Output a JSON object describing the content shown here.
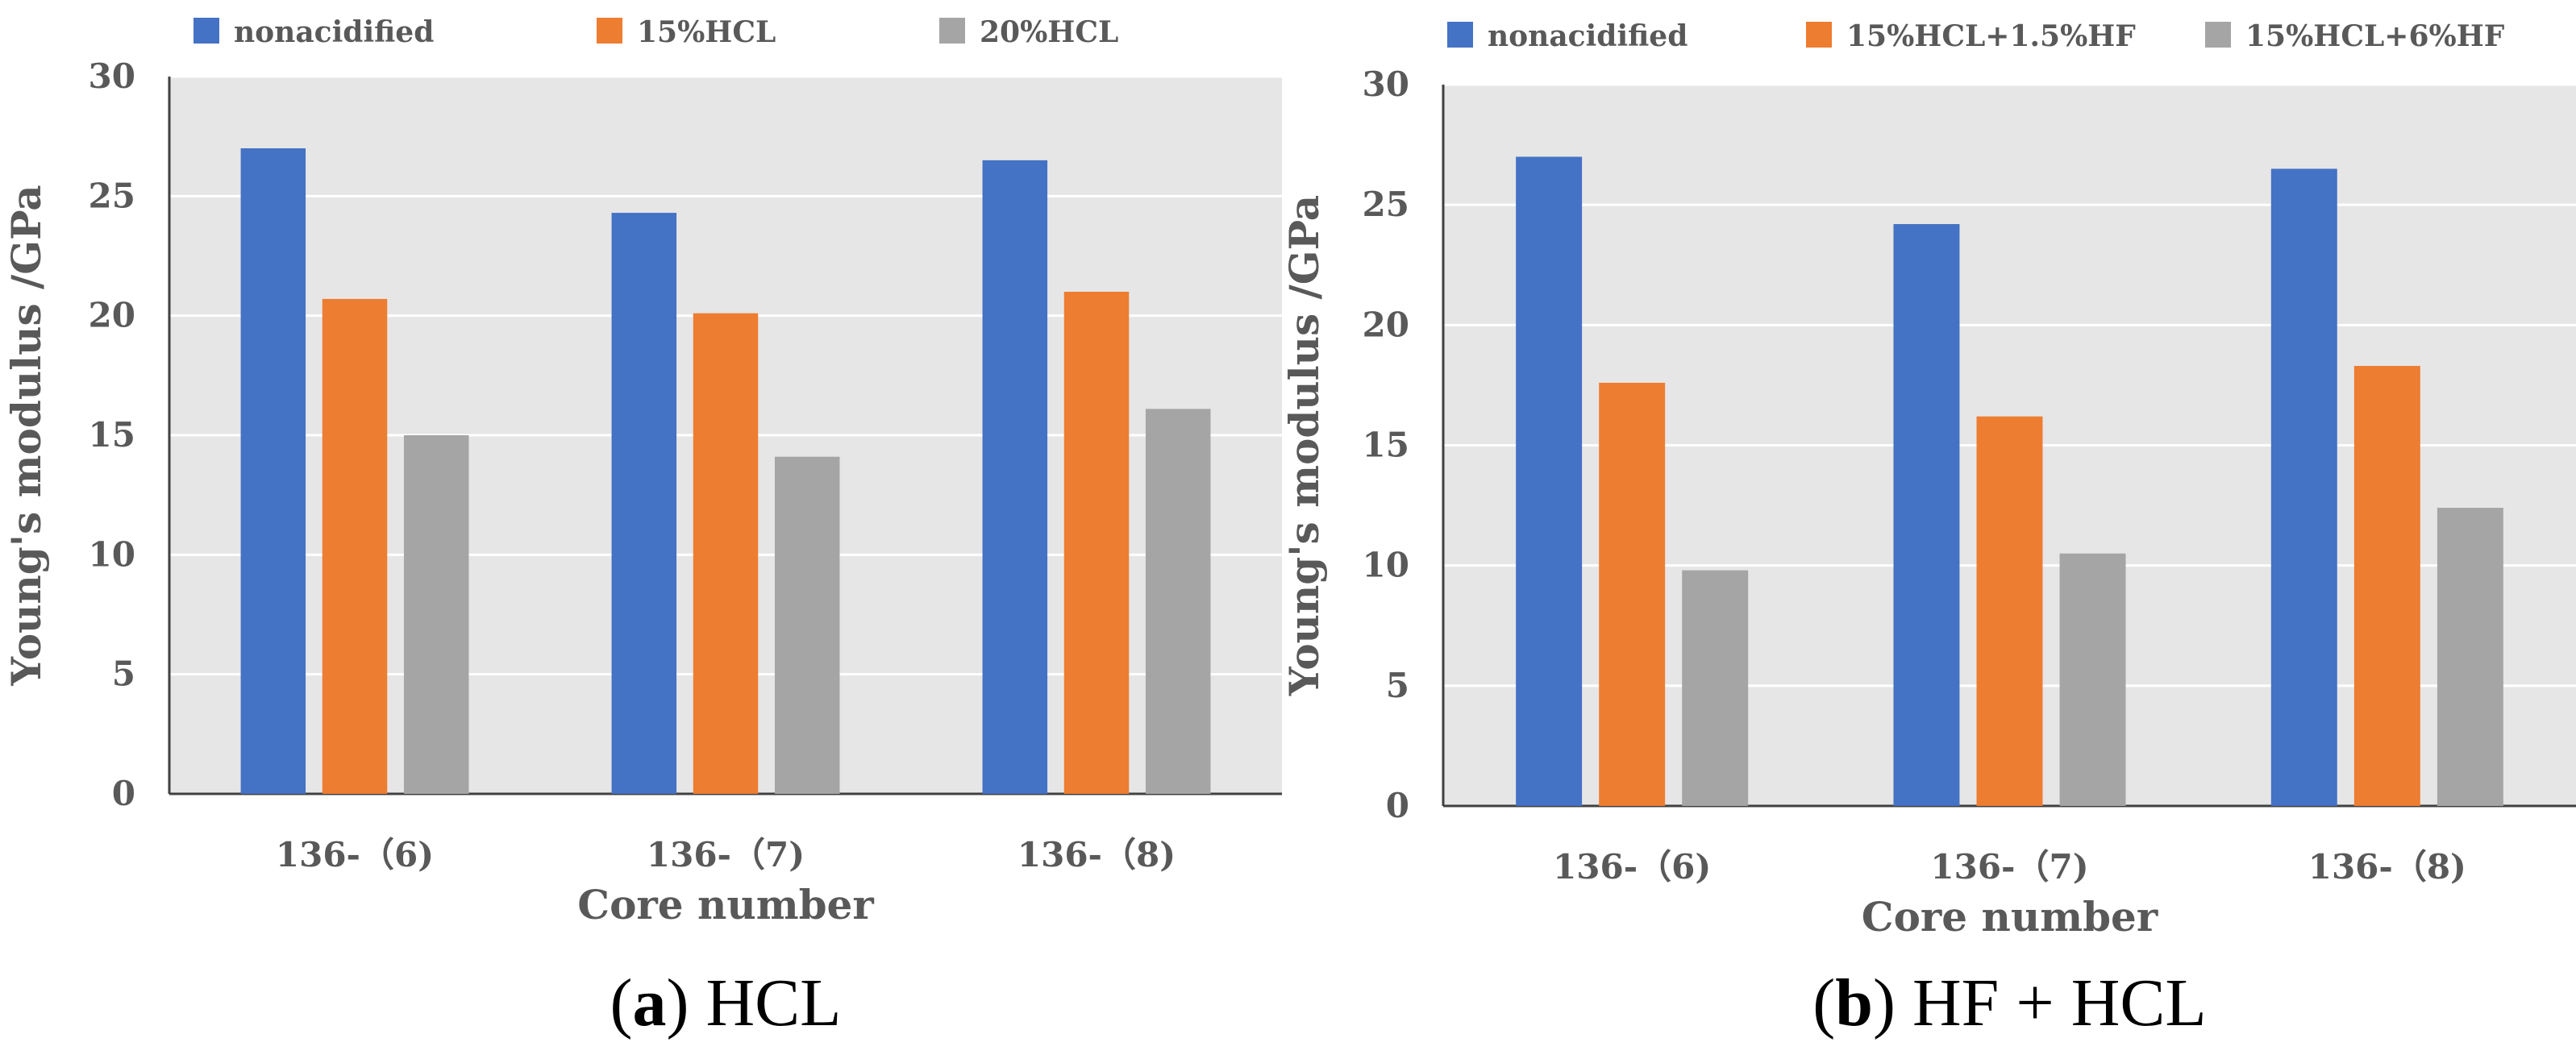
{
  "chart_data": [
    {
      "type": "bar",
      "caption_letter": "a",
      "caption_text": "HCL",
      "xlabel": "Core number",
      "ylabel": "Young's modulus /GPa",
      "categories": [
        "136-（6)",
        "136-（7)",
        "136-（8)"
      ],
      "ylim": [
        0,
        30
      ],
      "yticks": [
        0,
        5,
        10,
        15,
        20,
        25,
        30
      ],
      "grid": true,
      "legend": "top",
      "series": [
        {
          "name": "nonacidified",
          "color": "#4472C4",
          "values": [
            27.0,
            24.3,
            26.5
          ]
        },
        {
          "name": "15%HCL",
          "color": "#ED7D31",
          "values": [
            20.7,
            20.1,
            21.0
          ]
        },
        {
          "name": "20%HCL",
          "color": "#A5A5A5",
          "values": [
            15.0,
            14.1,
            16.1
          ]
        }
      ]
    },
    {
      "type": "bar",
      "caption_letter": "b",
      "caption_text": "HF + HCL",
      "xlabel": "Core number",
      "ylabel": "Young's modulus /GPa",
      "categories": [
        "136-（6)",
        "136-（7)",
        "136-（8)"
      ],
      "ylim": [
        0,
        30
      ],
      "yticks": [
        0,
        5,
        10,
        15,
        20,
        25,
        30
      ],
      "grid": true,
      "legend": "top",
      "series": [
        {
          "name": "nonacidified",
          "color": "#4472C4",
          "values": [
            27.0,
            24.2,
            26.5
          ]
        },
        {
          "name": "15%HCL+1.5%HF",
          "color": "#ED7D31",
          "values": [
            17.6,
            16.2,
            18.3
          ]
        },
        {
          "name": "15%HCL+6%HF",
          "color": "#A5A5A5",
          "values": [
            9.8,
            10.5,
            12.4
          ]
        }
      ]
    }
  ]
}
